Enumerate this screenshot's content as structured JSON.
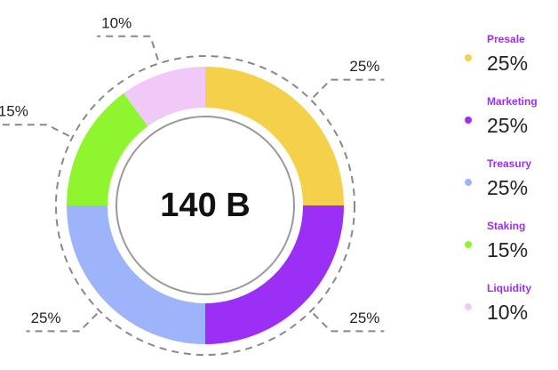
{
  "chart_data": {
    "type": "pie",
    "center_label": "140 B",
    "categories": [
      "Presale",
      "Marketing",
      "Treasury",
      "Staking",
      "Liquidity"
    ],
    "values": [
      25,
      25,
      25,
      15,
      10
    ],
    "value_labels": [
      "25%",
      "25%",
      "25%",
      "15%",
      "10%"
    ],
    "colors": [
      "#f5d04a",
      "#9b2ff5",
      "#9db4fb",
      "#8ef52e",
      "#f1c9f9"
    ]
  }
}
